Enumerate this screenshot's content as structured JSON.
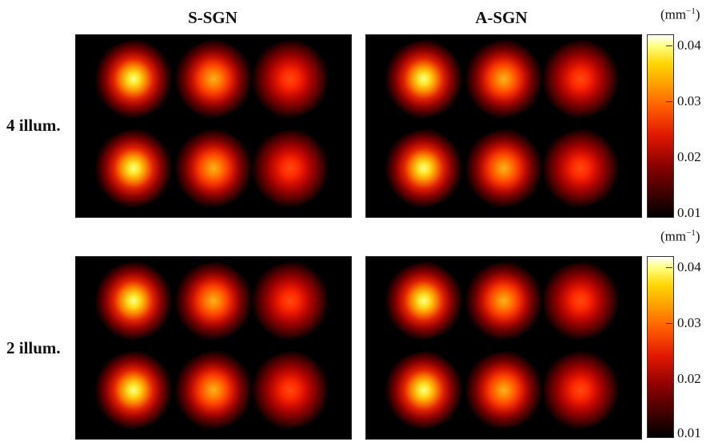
{
  "columns": {
    "left": "S-SGN",
    "right": "A-SGN"
  },
  "rows": {
    "top": "4 illum.",
    "bottom": "2 illum."
  },
  "colorbar": {
    "unit_base": "(mm",
    "unit_exp": "−1",
    "unit_close": ")",
    "ticks": [
      "0.04",
      "0.03",
      "0.02",
      "0.01"
    ]
  },
  "blob_intensity": {
    "top_left": [
      1.0,
      0.78,
      0.65,
      1.0,
      0.78,
      0.65
    ],
    "top_right": [
      1.0,
      0.8,
      0.62,
      1.0,
      0.8,
      0.62
    ],
    "bottom_left": [
      1.0,
      0.78,
      0.65,
      1.0,
      0.78,
      0.65
    ],
    "bottom_right": [
      1.0,
      0.8,
      0.62,
      1.0,
      0.8,
      0.62
    ]
  }
}
